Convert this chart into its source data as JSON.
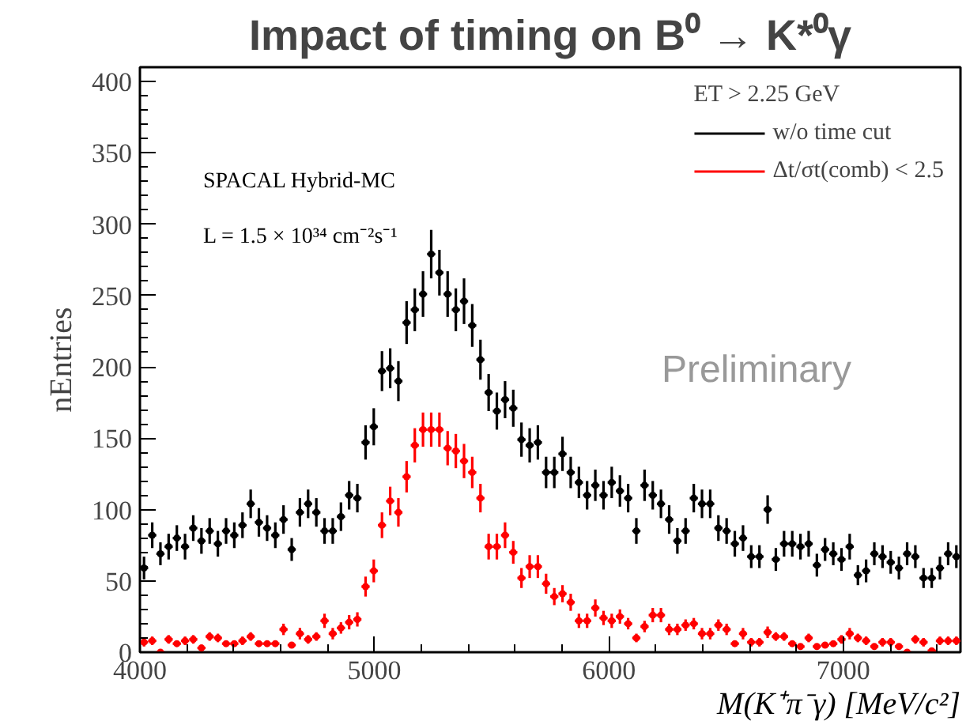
{
  "chart_data": {
    "type": "scatter",
    "title": "Impact of timing on B⁰ → K*⁰γ",
    "xlabel": "M(K⁺π⁻γ) [MeV/c²]",
    "ylabel": "nEntries",
    "legend_title": "ET > 2.25 GeV",
    "legend": "top right",
    "marker": "circle",
    "grid": false,
    "xlim": [
      4000,
      7500
    ],
    "xticks": [
      4000,
      5000,
      6000,
      7000
    ],
    "ylim": [
      0,
      410
    ],
    "yticks": [
      0,
      50,
      100,
      150,
      200,
      250,
      300,
      350,
      400
    ],
    "annotations": [
      "SPACAL Hybrid-MC",
      "L = 1.5 × 10³⁴ cm⁻²s⁻¹",
      "Preliminary"
    ],
    "x": [
      4017.5,
      4052.5,
      4087.5,
      4122.5,
      4157.5,
      4192.5,
      4227.5,
      4262.5,
      4297.5,
      4332.5,
      4367.5,
      4402.5,
      4437.5,
      4472.5,
      4507.5,
      4542.5,
      4577.5,
      4612.5,
      4647.5,
      4682.5,
      4717.5,
      4752.5,
      4787.5,
      4822.5,
      4857.5,
      4892.5,
      4927.5,
      4962.5,
      4997.5,
      5032.5,
      5067.5,
      5102.5,
      5137.5,
      5172.5,
      5207.5,
      5242.5,
      5277.5,
      5312.5,
      5347.5,
      5382.5,
      5417.5,
      5452.5,
      5487.5,
      5522.5,
      5557.5,
      5592.5,
      5627.5,
      5662.5,
      5697.5,
      5732.5,
      5767.5,
      5802.5,
      5837.5,
      5872.5,
      5907.5,
      5942.5,
      5977.5,
      6012.5,
      6047.5,
      6082.5,
      6117.5,
      6152.5,
      6187.5,
      6222.5,
      6257.5,
      6292.5,
      6327.5,
      6362.5,
      6397.5,
      6432.5,
      6467.5,
      6502.5,
      6537.5,
      6572.5,
      6607.5,
      6642.5,
      6677.5,
      6712.5,
      6747.5,
      6782.5,
      6817.5,
      6852.5,
      6887.5,
      6922.5,
      6957.5,
      6992.5,
      7027.5,
      7062.5,
      7097.5,
      7132.5,
      7167.5,
      7202.5,
      7237.5,
      7272.5,
      7307.5,
      7342.5,
      7377.5,
      7412.5,
      7447.5,
      7482.5
    ],
    "series": [
      {
        "name": "w/o time cut",
        "color": "#000000",
        "values": [
          59,
          82,
          69,
          74,
          80,
          74,
          87,
          78,
          85,
          76,
          85,
          82,
          89,
          104,
          91,
          87,
          82,
          93,
          72,
          98,
          104,
          98,
          85,
          85,
          95,
          110,
          108,
          147,
          158,
          197,
          199,
          190,
          231,
          240,
          251,
          279,
          266,
          251,
          240,
          246,
          229,
          205,
          182,
          169,
          177,
          171,
          149,
          145,
          147,
          126,
          126,
          139,
          126,
          119,
          110,
          117,
          110,
          119,
          113,
          108,
          85,
          117,
          110,
          104,
          93,
          78,
          85,
          108,
          104,
          104,
          87,
          85,
          76,
          80,
          67,
          67,
          100,
          65,
          76,
          76,
          74,
          76,
          61,
          72,
          69,
          65,
          74,
          54,
          57,
          69,
          67,
          63,
          59,
          69,
          67,
          52,
          52,
          59,
          69,
          67
        ],
        "errors": [
          8,
          9,
          8,
          9,
          9,
          9,
          9,
          9,
          9,
          9,
          9,
          9,
          9,
          10,
          10,
          9,
          9,
          10,
          8,
          10,
          10,
          10,
          9,
          9,
          10,
          10,
          10,
          12,
          13,
          14,
          14,
          14,
          15,
          15,
          16,
          17,
          16,
          16,
          15,
          16,
          15,
          14,
          13,
          13,
          13,
          13,
          12,
          12,
          12,
          11,
          11,
          12,
          11,
          11,
          10,
          11,
          10,
          11,
          11,
          10,
          9,
          11,
          10,
          10,
          10,
          9,
          9,
          10,
          10,
          10,
          9,
          9,
          9,
          9,
          8,
          8,
          10,
          8,
          9,
          9,
          9,
          9,
          8,
          8,
          8,
          8,
          9,
          7,
          8,
          8,
          8,
          8,
          8,
          8,
          8,
          7,
          7,
          8,
          8,
          8
        ],
        "xerrors": [
          17.5,
          17.5,
          17.5,
          17.5,
          17.5,
          17.5,
          17.5,
          17.5,
          17.5,
          17.5,
          17.5,
          17.5,
          17.5,
          17.5,
          17.5,
          17.5,
          17.5,
          17.5,
          17.5,
          17.5,
          17.5,
          17.5,
          17.5,
          17.5,
          17.5,
          17.5,
          17.5,
          17.5,
          17.5,
          17.5,
          17.5,
          17.5,
          17.5,
          17.5,
          17.5,
          17.5,
          17.5,
          17.5,
          17.5,
          17.5,
          17.5,
          17.5,
          17.5,
          17.5,
          17.5,
          17.5,
          17.5,
          17.5,
          17.5,
          17.5,
          17.5,
          17.5,
          17.5,
          17.5,
          17.5,
          17.5,
          17.5,
          17.5,
          17.5,
          17.5,
          17.5,
          17.5,
          17.5,
          17.5,
          17.5,
          17.5,
          17.5,
          17.5,
          17.5,
          17.5,
          17.5,
          17.5,
          17.5,
          17.5,
          17.5,
          17.5,
          17.5,
          17.5,
          17.5,
          17.5,
          17.5,
          17.5,
          17.5,
          17.5,
          17.5,
          17.5,
          17.5,
          17.5,
          17.5,
          17.5,
          17.5,
          17.5,
          17.5,
          17.5,
          17.5,
          17.5,
          17.5,
          17.5,
          17.5,
          17.5
        ]
      },
      {
        "name": "Δt/σt(comb) < 2.5",
        "color": "#ff0000",
        "values": [
          7,
          8,
          0,
          9,
          6,
          8,
          9,
          3,
          11,
          10,
          6,
          6,
          8,
          11,
          6,
          6,
          6,
          16,
          5,
          13,
          9,
          11,
          22,
          13,
          17,
          21,
          23,
          46,
          57,
          89,
          106,
          98,
          123,
          145,
          156,
          156,
          156,
          143,
          141,
          134,
          126,
          108,
          74,
          74,
          82,
          70,
          52,
          60,
          60,
          48,
          39,
          41,
          35,
          22,
          22,
          31,
          24,
          22,
          25,
          20,
          10,
          18,
          26,
          26,
          16,
          16,
          19,
          20,
          13,
          13,
          19,
          16,
          6,
          13,
          7,
          7,
          14,
          11,
          11,
          6,
          4,
          10,
          4,
          5,
          6,
          9,
          13,
          10,
          8,
          4,
          7,
          7,
          4,
          0,
          9,
          7,
          1,
          8,
          8,
          8
        ],
        "errors": [
          3,
          3,
          null,
          3,
          2,
          3,
          3,
          2,
          3,
          3,
          2,
          2,
          3,
          3,
          2,
          2,
          2,
          4,
          2,
          4,
          3,
          3,
          5,
          4,
          4,
          5,
          5,
          7,
          8,
          9,
          10,
          10,
          11,
          12,
          12,
          12,
          12,
          12,
          12,
          12,
          11,
          10,
          9,
          9,
          9,
          8,
          7,
          8,
          8,
          7,
          6,
          6,
          6,
          5,
          5,
          6,
          5,
          5,
          5,
          4,
          3,
          4,
          5,
          5,
          4,
          4,
          4,
          4,
          4,
          4,
          4,
          4,
          2,
          4,
          3,
          3,
          4,
          3,
          3,
          2,
          2,
          3,
          2,
          2,
          2,
          3,
          4,
          3,
          3,
          2,
          3,
          3,
          2,
          null,
          3,
          3,
          1,
          3,
          3,
          3
        ],
        "xerrors": [
          17.5,
          17.5,
          17.5,
          17.5,
          17.5,
          17.5,
          17.5,
          17.5,
          17.5,
          17.5,
          17.5,
          17.5,
          17.5,
          17.5,
          17.5,
          17.5,
          17.5,
          17.5,
          17.5,
          17.5,
          17.5,
          17.5,
          17.5,
          17.5,
          17.5,
          17.5,
          17.5,
          17.5,
          17.5,
          17.5,
          17.5,
          17.5,
          17.5,
          17.5,
          17.5,
          17.5,
          17.5,
          17.5,
          17.5,
          17.5,
          17.5,
          17.5,
          17.5,
          17.5,
          17.5,
          17.5,
          17.5,
          17.5,
          17.5,
          17.5,
          17.5,
          17.5,
          17.5,
          17.5,
          17.5,
          17.5,
          17.5,
          17.5,
          17.5,
          17.5,
          17.5,
          17.5,
          17.5,
          17.5,
          17.5,
          17.5,
          17.5,
          17.5,
          17.5,
          17.5,
          17.5,
          17.5,
          17.5,
          17.5,
          17.5,
          17.5,
          17.5,
          17.5,
          17.5,
          17.5,
          17.5,
          17.5,
          17.5,
          17.5,
          17.5,
          17.5,
          17.5,
          17.5,
          17.5,
          17.5,
          17.5,
          17.5,
          17.5,
          17.5,
          17.5,
          17.5,
          17.5,
          17.5,
          17.5,
          17.5
        ]
      }
    ]
  }
}
